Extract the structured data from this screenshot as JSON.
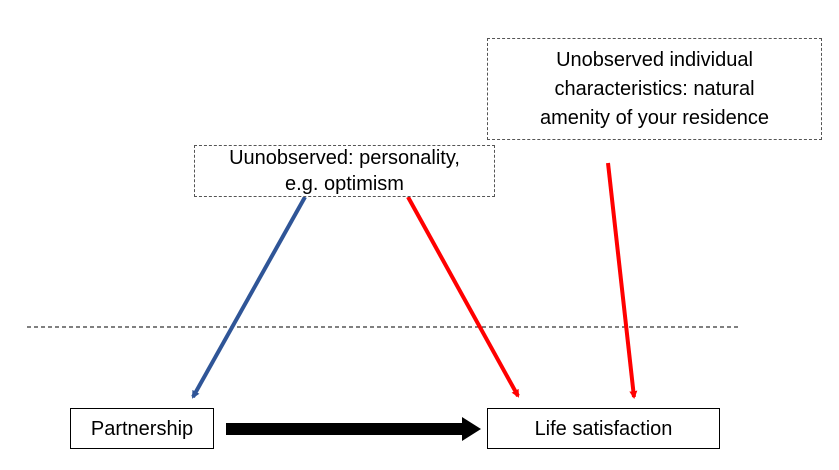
{
  "nodes": {
    "personality": {
      "lines": [
        "Uunobserved: personality,",
        "e.g. optimism"
      ]
    },
    "amenity": {
      "lines": [
        "Unobserved individual",
        "characteristics: natural",
        "amenity of your residence"
      ]
    },
    "partnership": {
      "label": "Partnership"
    },
    "life_satisfaction": {
      "label": "Life satisfaction"
    }
  },
  "colors": {
    "blue_arrow": "#2f5597",
    "red_arrow": "#ff0000",
    "black_arrow": "#000000",
    "divider": "#000000"
  }
}
